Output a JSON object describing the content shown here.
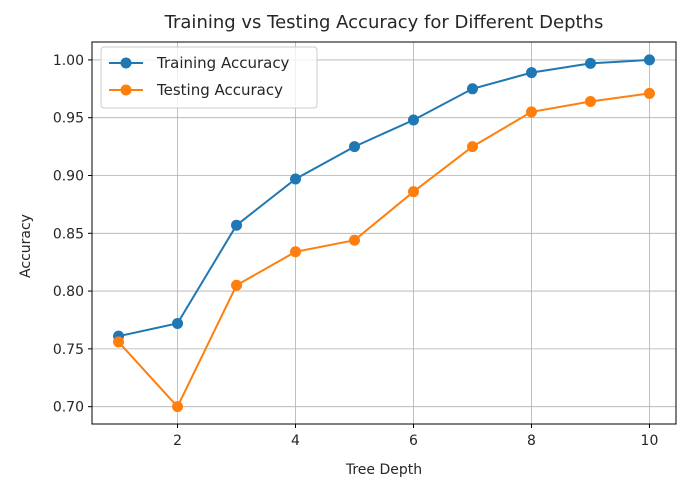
{
  "chart_data": {
    "type": "line",
    "title": "Training vs Testing Accuracy for Different Depths",
    "xlabel": "Tree Depth",
    "ylabel": "Accuracy",
    "x": [
      1,
      2,
      3,
      4,
      5,
      6,
      7,
      8,
      9,
      10
    ],
    "xlim": [
      0.55,
      10.45
    ],
    "ylim": [
      0.685,
      1.0155
    ],
    "xticks": [
      2,
      4,
      6,
      8,
      10
    ],
    "yticks": [
      0.7,
      0.75,
      0.8,
      0.85,
      0.9,
      0.95,
      1.0
    ],
    "ytick_labels": [
      "0.70",
      "0.75",
      "0.80",
      "0.85",
      "0.90",
      "0.95",
      "1.00"
    ],
    "grid": true,
    "legend_position": "top-left",
    "series": [
      {
        "name": "Training Accuracy",
        "color": "#1f77b4",
        "marker": "circle",
        "values": [
          0.761,
          0.772,
          0.857,
          0.897,
          0.925,
          0.948,
          0.975,
          0.989,
          0.997,
          1.0
        ]
      },
      {
        "name": "Testing Accuracy",
        "color": "#ff7f0e",
        "marker": "circle",
        "values": [
          0.756,
          0.7,
          0.805,
          0.834,
          0.844,
          0.886,
          0.925,
          0.955,
          0.964,
          0.971
        ]
      }
    ]
  }
}
